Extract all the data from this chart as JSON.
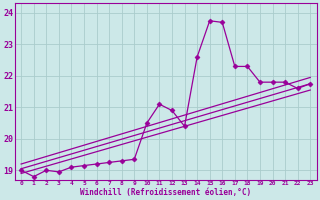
{
  "xlabel": "Windchill (Refroidissement éolien,°C)",
  "xlim": [
    -0.5,
    23.5
  ],
  "ylim": [
    18.7,
    24.3
  ],
  "yticks": [
    19,
    20,
    21,
    22,
    23,
    24
  ],
  "xticks": [
    0,
    1,
    2,
    3,
    4,
    5,
    6,
    7,
    8,
    9,
    10,
    11,
    12,
    13,
    14,
    15,
    16,
    17,
    18,
    19,
    20,
    21,
    22,
    23
  ],
  "bg_color": "#cce8e8",
  "grid_color": "#aacccc",
  "line_color": "#990099",
  "main_x": [
    0,
    1,
    2,
    3,
    4,
    5,
    6,
    7,
    8,
    9,
    10,
    11,
    12,
    13,
    14,
    15,
    16,
    17,
    18,
    19,
    20,
    21,
    22,
    23
  ],
  "main_y": [
    19.0,
    18.8,
    19.0,
    18.95,
    19.1,
    19.15,
    19.2,
    19.25,
    19.3,
    19.35,
    20.5,
    21.1,
    20.9,
    20.4,
    22.6,
    23.75,
    23.7,
    22.3,
    22.3,
    21.8,
    21.8,
    21.8,
    21.6,
    21.75
  ],
  "reg_lines": [
    {
      "x": [
        0,
        23
      ],
      "y": [
        18.9,
        21.55
      ]
    },
    {
      "x": [
        0,
        23
      ],
      "y": [
        19.05,
        21.75
      ]
    },
    {
      "x": [
        0,
        23
      ],
      "y": [
        19.2,
        21.95
      ]
    }
  ],
  "marker": "D",
  "markersize": 2.5,
  "linewidth": 0.9
}
